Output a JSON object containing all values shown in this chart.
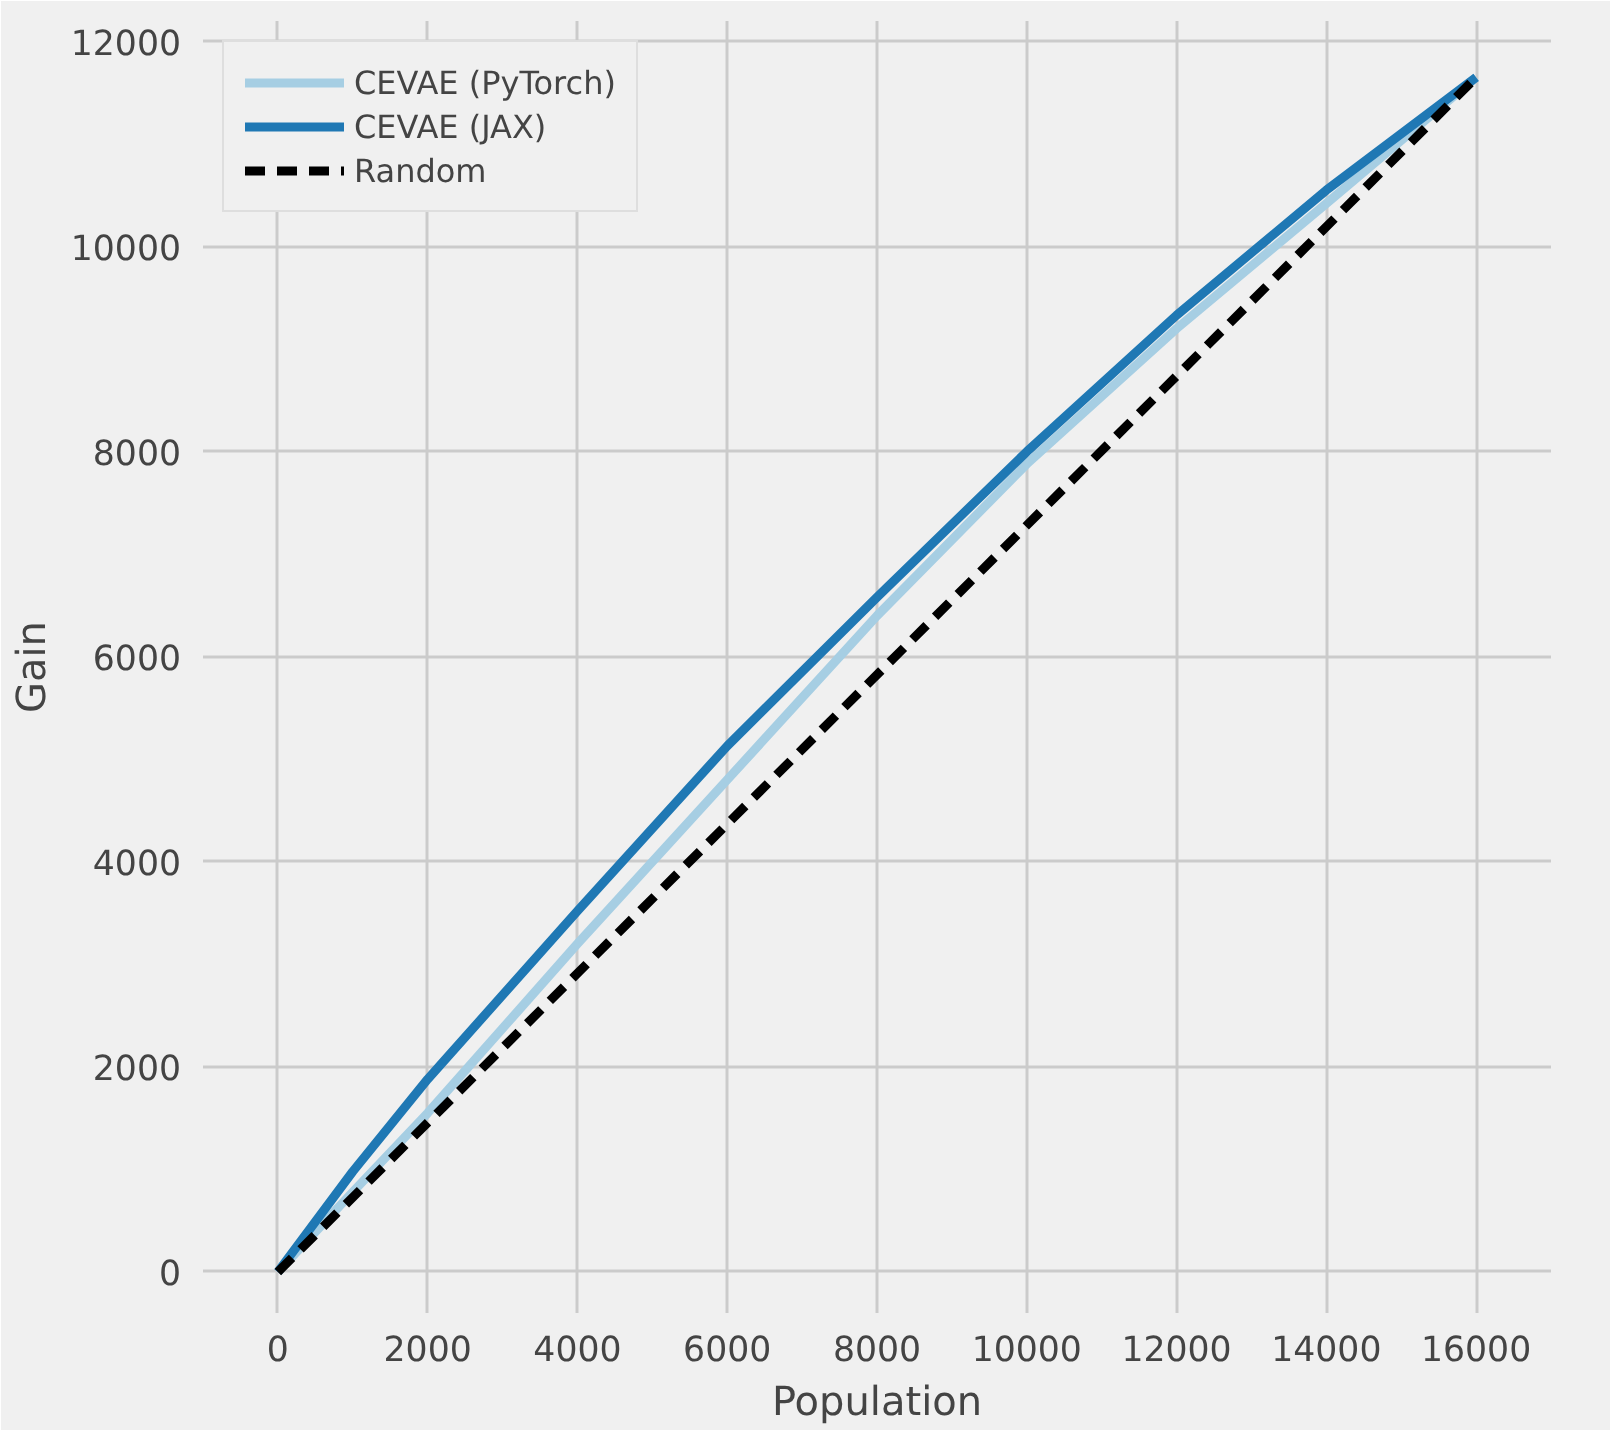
{
  "chart_data": {
    "type": "line",
    "xlabel": "Population",
    "ylabel": "Gain",
    "xlim": [
      -1000,
      17000
    ],
    "ylim": [
      -400,
      12200
    ],
    "xticks": [
      0,
      2000,
      4000,
      6000,
      8000,
      10000,
      12000,
      14000,
      16000
    ],
    "yticks": [
      0,
      2000,
      4000,
      6000,
      8000,
      10000,
      12000
    ],
    "grid": true,
    "legend": "top left",
    "series": [
      {
        "name": "CEVAE (PyTorch)",
        "color": "#a6cee3",
        "x": [
          0,
          1000,
          2000,
          4000,
          6000,
          8000,
          10000,
          12000,
          14000,
          16000
        ],
        "values": [
          0,
          780,
          1550,
          3200,
          4800,
          6400,
          7880,
          9200,
          10420,
          11650
        ]
      },
      {
        "name": "CEVAE (JAX)",
        "color": "#1f78b4",
        "x": [
          0,
          1000,
          2000,
          4000,
          6000,
          8000,
          10000,
          12000,
          14000,
          16000
        ],
        "values": [
          0,
          980,
          1880,
          3520,
          5130,
          6580,
          8000,
          9330,
          10550,
          11650
        ]
      },
      {
        "name": "Random",
        "color": "#000000",
        "line_style": "dashed",
        "x": [
          0,
          16000
        ],
        "values": [
          0,
          11650
        ]
      }
    ]
  }
}
